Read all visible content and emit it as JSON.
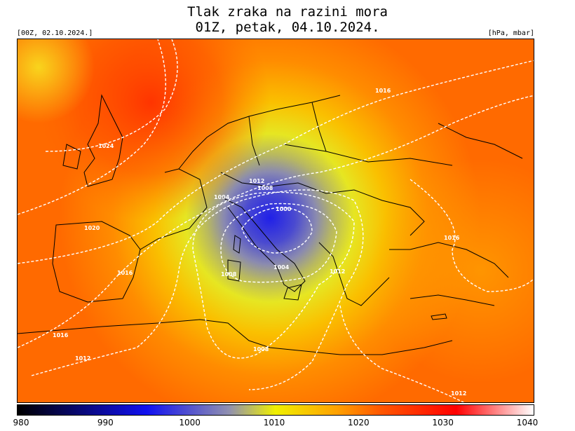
{
  "title": {
    "line1": "Tlak zraka na razini mora",
    "line2": "01Z, petak, 04.10.2024."
  },
  "run_label": "[00Z, 02.10.2024.]",
  "unit_label": "[hPa, mbar]",
  "colorbar": {
    "ticks": [
      "980",
      "990",
      "1000",
      "1010",
      "1020",
      "1030",
      "1040"
    ],
    "colors": {
      "c980": "#000000",
      "c995": "#1010f0",
      "c1005": "#9090b0",
      "c1010": "#f0f000",
      "c1020": "#ff5a00",
      "c1030": "#ff0000",
      "c1040": "#ffffff"
    }
  },
  "isobar_labels": {
    "l1000": "1000",
    "l1004a": "1004",
    "l1004b": "1004",
    "l1008a": "1008",
    "l1008b": "1008",
    "l1008c": "1008",
    "l1012a": "1012",
    "l1012b": "1012",
    "l1012c": "1012",
    "l1012d": "1012",
    "l1016a": "1016",
    "l1016b": "1016",
    "l1016c": "1016",
    "l1016d": "1016",
    "l1020": "1020",
    "l1024": "1024"
  }
}
